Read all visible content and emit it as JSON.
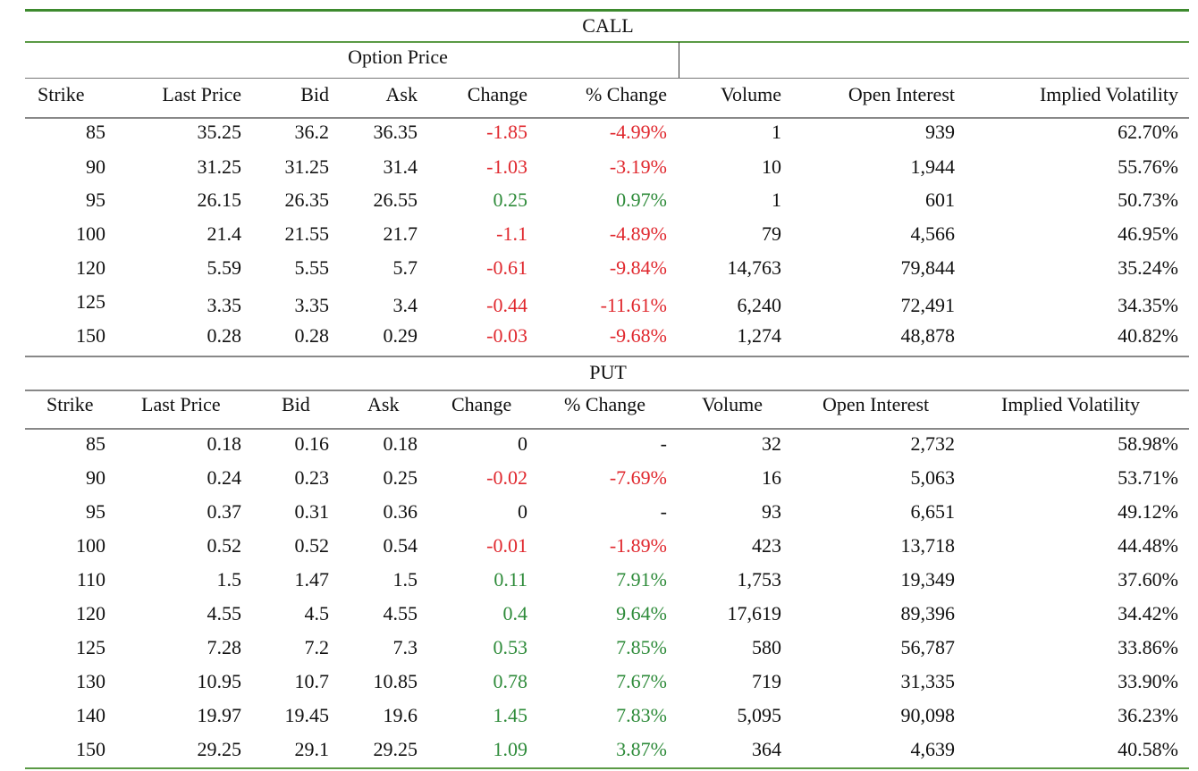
{
  "colors": {
    "rule_green": "#3d8a2e",
    "rule_gray": "#888888",
    "negative": "#e0282e",
    "positive": "#2e8b3a"
  },
  "call": {
    "title": "CALL",
    "group_header": "Option Price",
    "headers": [
      "Strike",
      "Last Price",
      "Bid",
      "Ask",
      "Change",
      "% Change",
      "Volume",
      "Open Interest",
      "Implied Volatility"
    ],
    "rows": [
      [
        "85",
        "35.25",
        "36.2",
        "36.35",
        "-1.85",
        "-4.99%",
        "1",
        "939",
        "62.70%"
      ],
      [
        "90",
        "31.25",
        "31.25",
        "31.4",
        "-1.03",
        "-3.19%",
        "10",
        "1,944",
        "55.76%"
      ],
      [
        "95",
        "26.15",
        "26.35",
        "26.55",
        "0.25",
        "0.97%",
        "1",
        "601",
        "50.73%"
      ],
      [
        "100",
        "21.4",
        "21.55",
        "21.7",
        "-1.1",
        "-4.89%",
        "79",
        "4,566",
        "46.95%"
      ],
      [
        "120",
        "5.59",
        "5.55",
        "5.7",
        "-0.61",
        "-9.84%",
        "14,763",
        "79,844",
        "35.24%"
      ],
      [
        "125",
        "3.35",
        "3.35",
        "3.4",
        "-0.44",
        "-11.61%",
        "6,240",
        "72,491",
        "34.35%"
      ],
      [
        "150",
        "0.28",
        "0.28",
        "0.29",
        "-0.03",
        "-9.68%",
        "1,274",
        "48,878",
        "40.82%"
      ]
    ]
  },
  "put": {
    "title": "PUT",
    "headers": [
      "Strike",
      "Last Price",
      "Bid",
      "Ask",
      "Change",
      "% Change",
      "Volume",
      "Open Interest",
      "Implied Volatility"
    ],
    "rows": [
      [
        "85",
        "0.18",
        "0.16",
        "0.18",
        "0",
        "-",
        "32",
        "2,732",
        "58.98%"
      ],
      [
        "90",
        "0.24",
        "0.23",
        "0.25",
        "-0.02",
        "-7.69%",
        "16",
        "5,063",
        "53.71%"
      ],
      [
        "95",
        "0.37",
        "0.31",
        "0.36",
        "0",
        "-",
        "93",
        "6,651",
        "49.12%"
      ],
      [
        "100",
        "0.52",
        "0.52",
        "0.54",
        "-0.01",
        "-1.89%",
        "423",
        "13,718",
        "44.48%"
      ],
      [
        "110",
        "1.5",
        "1.47",
        "1.5",
        "0.11",
        "7.91%",
        "1,753",
        "19,349",
        "37.60%"
      ],
      [
        "120",
        "4.55",
        "4.5",
        "4.55",
        "0.4",
        "9.64%",
        "17,619",
        "89,396",
        "34.42%"
      ],
      [
        "125",
        "7.28",
        "7.2",
        "7.3",
        "0.53",
        "7.85%",
        "580",
        "56,787",
        "33.86%"
      ],
      [
        "130",
        "10.95",
        "10.7",
        "10.85",
        "0.78",
        "7.67%",
        "719",
        "31,335",
        "33.90%"
      ],
      [
        "140",
        "19.97",
        "19.45",
        "19.6",
        "1.45",
        "7.83%",
        "5,095",
        "90,098",
        "36.23%"
      ],
      [
        "150",
        "29.25",
        "29.1",
        "29.25",
        "1.09",
        "3.87%",
        "364",
        "4,639",
        "40.58%"
      ]
    ]
  }
}
